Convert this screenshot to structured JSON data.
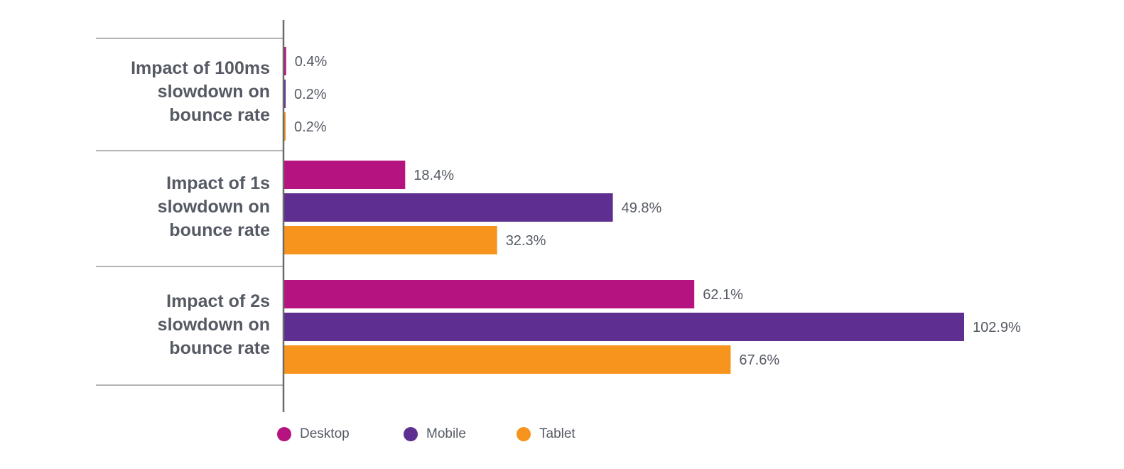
{
  "chart_data": {
    "type": "bar",
    "orientation": "horizontal",
    "categories": [
      "Impact of 100ms\nslowdown on\nbounce rate",
      "Impact of 1s\nslowdown on\nbounce rate",
      "Impact of 2s\nslowdown on\nbounce rate"
    ],
    "series": [
      {
        "name": "Desktop",
        "color": "#b5137f",
        "values": [
          0.4,
          18.4,
          62.1
        ],
        "labels": [
          "0.4%",
          "18.4%",
          "62.1%"
        ]
      },
      {
        "name": "Mobile",
        "color": "#5f2e91",
        "values": [
          0.2,
          49.8,
          102.9
        ],
        "labels": [
          "0.2%",
          "49.8%",
          "102.9%"
        ]
      },
      {
        "name": "Tablet",
        "color": "#f7941d",
        "values": [
          0.2,
          32.3,
          67.6
        ],
        "labels": [
          "0.2%",
          "32.3%",
          "67.6%"
        ]
      }
    ],
    "xlim": [
      0,
      102.9
    ],
    "title": "",
    "xlabel": "",
    "ylabel": "",
    "legend": "bottom",
    "grid": false
  },
  "legend": {
    "items": [
      {
        "label": "Desktop",
        "color": "#b5137f"
      },
      {
        "label": "Mobile",
        "color": "#5f2e91"
      },
      {
        "label": "Tablet",
        "color": "#f7941d"
      }
    ]
  },
  "colors": {
    "axis": "#6b6b6b",
    "separator": "#9a9a9a",
    "label_text": "#555a64",
    "value_text": "#555a64"
  }
}
